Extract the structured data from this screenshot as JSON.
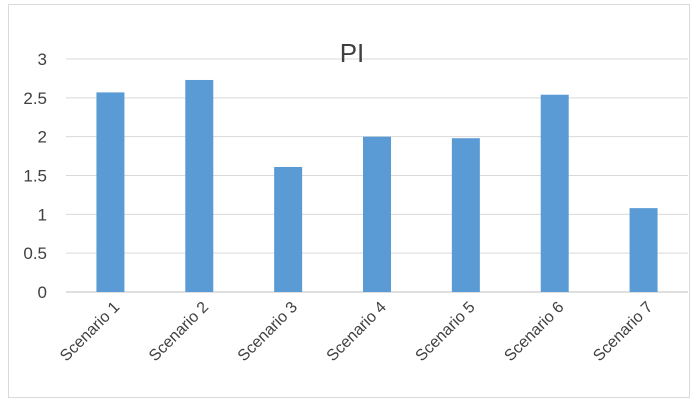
{
  "chart_data": {
    "type": "bar",
    "title": "PI",
    "categories": [
      "Scenario 1",
      "Scenario 2",
      "Scenario 3",
      "Scenario 4",
      "Scenario 5",
      "Scenario 6",
      "Scenario 7"
    ],
    "values": [
      2.57,
      2.73,
      1.61,
      2.0,
      1.98,
      2.54,
      1.08
    ],
    "yticks": [
      "0",
      "0.5",
      "1",
      "1.5",
      "2",
      "2.5",
      "3"
    ],
    "ylim": [
      0,
      3
    ],
    "xlabel": "",
    "ylabel": "",
    "grid": true,
    "legend": "none",
    "bar_color": "#5b9bd5",
    "grid_color": "#d9d9d9"
  }
}
